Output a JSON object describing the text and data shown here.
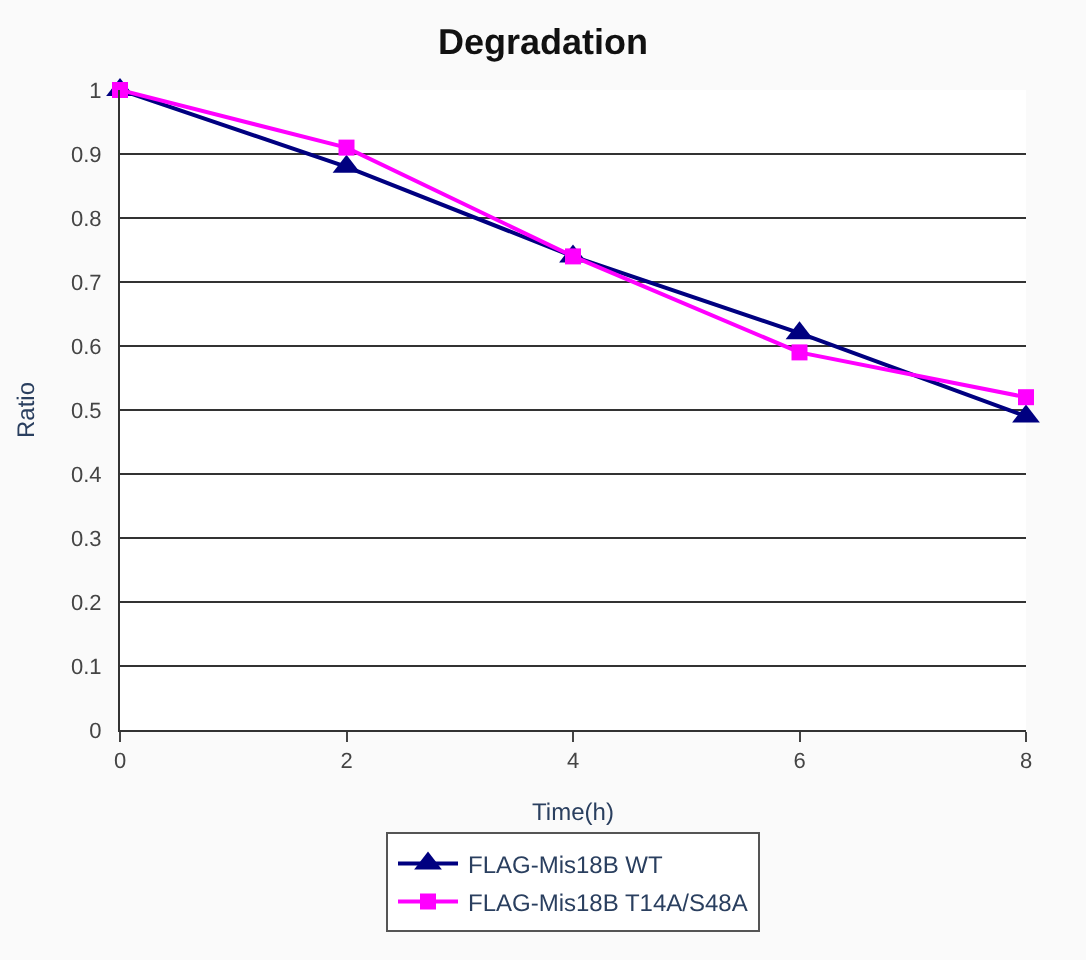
{
  "chart_data": {
    "type": "line",
    "title": "Degradation",
    "xlabel": "Time(h)",
    "ylabel": "Ratio",
    "x": [
      0,
      2,
      4,
      6,
      8
    ],
    "series": [
      {
        "name": "FLAG-Mis18B WT",
        "color": "#000080",
        "marker": "triangle",
        "values": [
          1,
          0.88,
          0.74,
          0.62,
          0.49
        ]
      },
      {
        "name": "FLAG-Mis18B T14A/S48A",
        "color": "#ff00ff",
        "marker": "square",
        "values": [
          1,
          0.91,
          0.74,
          0.59,
          0.52
        ]
      }
    ],
    "xlim": [
      0,
      8
    ],
    "xticks": [
      0,
      2,
      4,
      6,
      8
    ],
    "ylim": [
      0,
      1
    ],
    "yticks": [
      0,
      0.1,
      0.2,
      0.3,
      0.4,
      0.5,
      0.6,
      0.7,
      0.8,
      0.9,
      1
    ],
    "grid": "y",
    "legend": "bottom",
    "line_style": "solid"
  }
}
